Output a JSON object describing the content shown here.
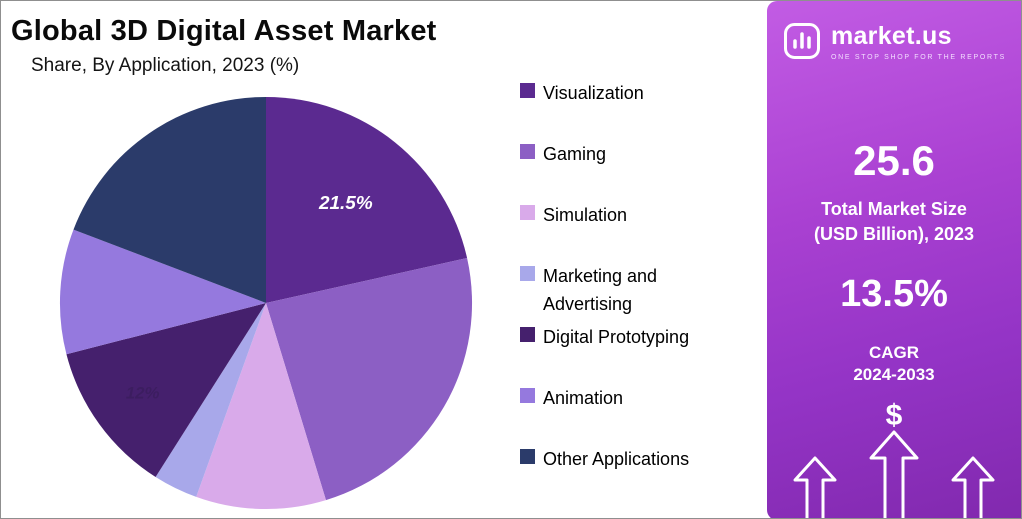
{
  "chart_data": {
    "type": "pie",
    "title": "Global 3D Digital Asset Market",
    "subtitle": "Share, By Application, 2023 (%)",
    "legend_position": "right",
    "start_angle_deg": 0,
    "direction": "clockwise",
    "slices": [
      {
        "label": "Visualization",
        "value": 21.5,
        "color": "#5b2a90",
        "data_label": "21.5%",
        "data_label_style": "bold-white"
      },
      {
        "label": "Gaming",
        "value": 23.8,
        "color": "#8c5fc4"
      },
      {
        "label": "Simulation",
        "value": 10.2,
        "color": "#d9aaea"
      },
      {
        "label": "Marketing and Advertising",
        "value": 3.5,
        "color": "#a8a8ea"
      },
      {
        "label": "Digital Prototyping",
        "value": 12.0,
        "color": "#45206d",
        "data_label": "12%",
        "data_label_style": "faint-dark"
      },
      {
        "label": "Animation",
        "value": 9.8,
        "color": "#9579de"
      },
      {
        "label": "Other Applications",
        "value": 19.2,
        "color": "#2b3b6a"
      }
    ]
  },
  "sidebar": {
    "brand": "market.us",
    "tagline": "ONE STOP SHOP FOR THE REPORTS",
    "stat_market_size": {
      "value": "25.6",
      "label_line1": "Total Market Size",
      "label_line2": "(USD Billion), 2023"
    },
    "stat_cagr": {
      "value": "13.5%",
      "label_line1": "CAGR",
      "label_line2": "2024-2033"
    },
    "currency_symbol": "$"
  }
}
